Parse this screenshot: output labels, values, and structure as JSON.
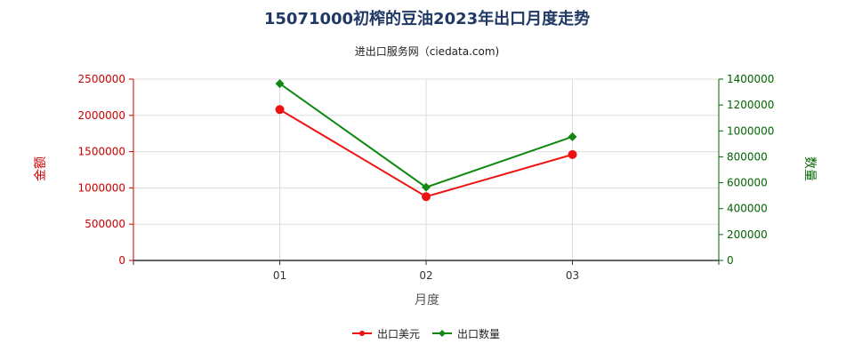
{
  "chart_data": {
    "type": "line",
    "title": "15071000初榨的豆油2023年出口月度走势",
    "subtitle": "进出口服务网（ciedata.com)",
    "xlabel": "月度",
    "ylabel_left": "金额",
    "ylabel_right": "数量",
    "categories": [
      "01",
      "02",
      "03"
    ],
    "ylim_left": [
      0,
      2500000
    ],
    "ylim_right": [
      0,
      1400000
    ],
    "yticks_left": [
      "0",
      "500000",
      "1000000",
      "1500000",
      "2000000",
      "2500000"
    ],
    "yticks_right": [
      "0",
      "200000",
      "400000",
      "600000",
      "800000",
      "1000000",
      "1200000",
      "1400000"
    ],
    "grid": true,
    "legend_position": "bottom",
    "series": [
      {
        "name": "出口美元",
        "axis": "left",
        "color": "#ee1111",
        "marker": "circle",
        "values": [
          2080000,
          880000,
          1460000
        ]
      },
      {
        "name": "出口数量",
        "axis": "right",
        "color": "#118811",
        "marker": "diamond",
        "values": [
          1365000,
          565000,
          955000
        ]
      }
    ]
  }
}
